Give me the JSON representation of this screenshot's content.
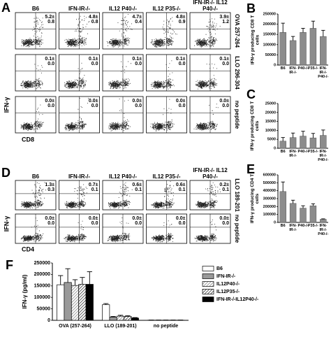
{
  "flow_panels": [
    {
      "panel": "A",
      "y_label": "IFN-γ",
      "x_label": "CD8",
      "columns": [
        "B6",
        "IFN-IR-/-",
        "IL12 P40-/-",
        "IL12 P35-/-",
        "IFN-IR-/- IL12 P40-/-"
      ],
      "rows": [
        {
          "label": "OVA 257-264",
          "stats": [
            [
              "5.2±",
              "0.8"
            ],
            [
              "4.8±",
              "0.8"
            ],
            [
              "4.7±",
              "0.4"
            ],
            [
              "4.8±",
              "0.9"
            ],
            [
              "3.9±",
              "1.2"
            ]
          ]
        },
        {
          "label": "LLO 296-304",
          "stats": [
            [
              "0.1±",
              "0.0"
            ],
            [
              "0.1±",
              "0.0"
            ],
            [
              "0.1±",
              "0.0"
            ],
            [
              "0.1±",
              "0.0"
            ],
            [
              "0.1±",
              "0.0"
            ]
          ]
        },
        {
          "label": "no peptide",
          "stats": [
            [
              "0.0±",
              "0.0"
            ],
            [
              "0.0±",
              "0.0"
            ],
            [
              "0.0±",
              "0.0"
            ],
            [
              "0.0±",
              "0.0"
            ],
            [
              "0.0±",
              "0.0"
            ]
          ]
        }
      ]
    },
    {
      "panel": "D",
      "y_label": "IFN-γ",
      "x_label": "CD4",
      "columns": [
        "B6",
        "IFN-IR-/-",
        "IL12 P40-/-",
        "IL12 P35-/-",
        "IFN-IR-/- IL12 P40-/-"
      ],
      "rows": [
        {
          "label": "LLO 189-201",
          "stats": [
            [
              "1.3±",
              "0.3"
            ],
            [
              "0.7±",
              "0.1"
            ],
            [
              "0.6±",
              "0.1"
            ],
            [
              "0.6±",
              "0.1"
            ],
            [
              "0.2±",
              "0.1"
            ]
          ]
        },
        {
          "label": "no peptide",
          "stats": [
            [
              "0.0±",
              "0.0"
            ],
            [
              "0.0±",
              "0.0"
            ],
            [
              "0.0±",
              "0.0"
            ],
            [
              "0.0±",
              "0.0"
            ],
            [
              "0.0±",
              "0.0"
            ]
          ]
        }
      ]
    }
  ],
  "chart_data": [
    {
      "type": "bar",
      "panel": "B",
      "y_label": "IFN-γ producing CD8 T cells",
      "categories": [
        "B6",
        "IFN-IR-/-",
        "P40-/-",
        "P35-/-",
        "IFN-IR-/- P40-/-"
      ],
      "values": [
        160000,
        120000,
        160000,
        180000,
        140000
      ],
      "errors": [
        45000,
        20000,
        20000,
        35000,
        30000
      ],
      "color": "#8c8c8c",
      "ylim": [
        0,
        250000
      ],
      "yticks": [
        0,
        50000,
        100000,
        150000,
        200000,
        250000
      ]
    },
    {
      "type": "bar",
      "panel": "C",
      "y_label": "IFN-γ producing CD8 T cells",
      "categories": [
        "B6",
        "IFN-IR-/-",
        "P40-/-",
        "P35-/-",
        "IFN-IR-/- P40-/-"
      ],
      "values": [
        4000,
        6000,
        6800,
        5800,
        7200
      ],
      "errors": [
        2000,
        2500,
        2700,
        2500,
        3000
      ],
      "color": "#8c8c8c",
      "ylim": [
        0,
        25000
      ],
      "yticks": [
        0,
        5000,
        10000,
        15000,
        20000,
        25000
      ]
    },
    {
      "type": "bar",
      "panel": "E",
      "y_label": "IFN-γ producing CD4 T cells",
      "categories": [
        "B6",
        "IFN-IR-/-",
        "P40-/-",
        "P35-/-",
        "IFN-IR-/- P40-/-"
      ],
      "values": [
        390000,
        240000,
        180000,
        210000,
        40000
      ],
      "errors": [
        120000,
        40000,
        30000,
        25000,
        5000
      ],
      "color": "#8c8c8c",
      "ylim": [
        0,
        600000
      ],
      "yticks": [
        0,
        100000,
        200000,
        300000,
        400000,
        500000,
        600000
      ]
    },
    {
      "type": "grouped_bar",
      "panel": "F",
      "y_label": "IFN-γ (pg/ml)",
      "categories": [
        "OVA (257-264)",
        "LLO (189-201)",
        "no peptide"
      ],
      "ylim": [
        0,
        250000
      ],
      "yticks": [
        0,
        50000,
        100000,
        150000,
        200000,
        250000
      ],
      "series": [
        {
          "name": "B6",
          "color": "#ffffff",
          "values": [
            155000,
            68000,
            800
          ],
          "errors": [
            40000,
            5000,
            500
          ]
        },
        {
          "name": "IFN-IR-/-",
          "color": "#999999",
          "values": [
            165000,
            14000,
            800
          ],
          "errors": [
            60000,
            3000,
            500
          ]
        },
        {
          "name": "IL12P40-/-",
          "color": "#888888",
          "pattern": "hatched",
          "values": [
            152000,
            18000,
            800
          ],
          "errors": [
            25000,
            4000,
            500
          ]
        },
        {
          "name": "IL12P35-/-",
          "color": "#333333",
          "pattern": "hatched",
          "values": [
            157000,
            17000,
            800
          ],
          "errors": [
            30000,
            3000,
            500
          ]
        },
        {
          "name": "IFN-IR-/-IL12P40-/-",
          "color": "#000000",
          "values": [
            157000,
            10000,
            800
          ],
          "errors": [
            55000,
            2000,
            500
          ]
        }
      ]
    }
  ]
}
